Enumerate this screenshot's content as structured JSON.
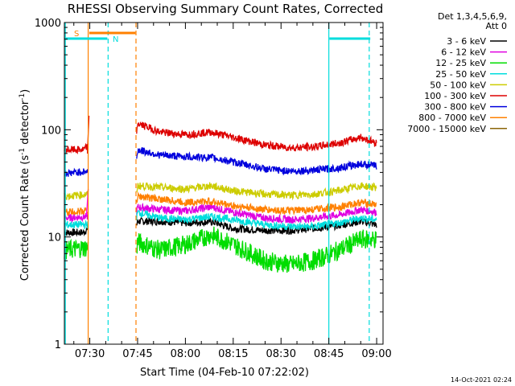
{
  "chart_data": {
    "type": "line",
    "title": "RHESSI Observing Summary Count Rates, Corrected",
    "xlabel": "Start Time (04-Feb-10 07:22:02)",
    "ylabel_main": "Corrected Count Rate (s",
    "ylabel_sup1": "-1",
    "ylabel_mid": " detector",
    "ylabel_sup2": "-1",
    "ylabel_end": ")",
    "y_scale": "log",
    "ylim": [
      1,
      1000
    ],
    "xlim": [
      "07:22:02",
      "09:02:00"
    ],
    "x_ticks": [
      "07:30",
      "07:45",
      "08:00",
      "08:15",
      "08:30",
      "08:45",
      "09:00"
    ],
    "y_ticks": [
      "1",
      "10",
      "100",
      "1000"
    ],
    "legend_header": [
      "Det 1,3,4,5,6,9,",
      "Att 0"
    ],
    "series": [
      {
        "name": "3 - 6 keV",
        "color": "#000000",
        "points": [
          [
            "07:22:02",
            11
          ],
          [
            "07:28:00",
            11
          ],
          [
            "07:29:30",
            12
          ],
          [
            "07:44:30",
            12
          ],
          [
            "07:45:00",
            14
          ],
          [
            "07:52:00",
            14
          ],
          [
            "08:00:00",
            13.5
          ],
          [
            "08:08:00",
            14
          ],
          [
            "08:15:00",
            12
          ],
          [
            "08:25:00",
            11.5
          ],
          [
            "08:33:00",
            11.5
          ],
          [
            "08:40:00",
            12
          ],
          [
            "08:48:00",
            12.8
          ],
          [
            "08:55:00",
            14
          ],
          [
            "09:00:00",
            13
          ]
        ]
      },
      {
        "name": "6 - 12 keV",
        "color": "#e000e0",
        "points": [
          [
            "07:22:02",
            15
          ],
          [
            "07:29:30",
            15.5
          ],
          [
            "07:44:30",
            16
          ],
          [
            "07:45:00",
            19
          ],
          [
            "07:52:00",
            18
          ],
          [
            "08:00:00",
            17.5
          ],
          [
            "08:08:00",
            19
          ],
          [
            "08:15:00",
            17
          ],
          [
            "08:25:00",
            15
          ],
          [
            "08:33:00",
            14.5
          ],
          [
            "08:40:00",
            15
          ],
          [
            "08:48:00",
            16
          ],
          [
            "08:55:00",
            18
          ],
          [
            "09:00:00",
            17
          ]
        ]
      },
      {
        "name": "12 - 25 keV",
        "color": "#00dd00",
        "points": [
          [
            "07:22:02",
            7.5
          ],
          [
            "07:29:30",
            8
          ],
          [
            "07:44:30",
            7
          ],
          [
            "07:45:00",
            9
          ],
          [
            "07:52:00",
            7.5
          ],
          [
            "08:00:00",
            8.5
          ],
          [
            "08:08:00",
            10.5
          ],
          [
            "08:15:00",
            8.5
          ],
          [
            "08:25:00",
            6
          ],
          [
            "08:33:00",
            5.5
          ],
          [
            "08:40:00",
            6
          ],
          [
            "08:45:00",
            6.8
          ],
          [
            "08:55:00",
            9.5
          ],
          [
            "09:00:00",
            9.5
          ]
        ]
      },
      {
        "name": "25 - 50 keV",
        "color": "#00dddd",
        "points": [
          [
            "07:22:02",
            13
          ],
          [
            "07:29:30",
            13
          ],
          [
            "07:44:30",
            14
          ],
          [
            "07:45:00",
            17
          ],
          [
            "07:52:00",
            15
          ],
          [
            "08:00:00",
            14.5
          ],
          [
            "08:08:00",
            15.5
          ],
          [
            "08:15:00",
            14.5
          ],
          [
            "08:25:00",
            13
          ],
          [
            "08:33:00",
            12.5
          ],
          [
            "08:40:00",
            12.5
          ],
          [
            "08:48:00",
            13.5
          ],
          [
            "08:55:00",
            15
          ],
          [
            "09:00:00",
            14.5
          ]
        ]
      },
      {
        "name": "50 - 100 keV",
        "color": "#cccc00",
        "points": [
          [
            "07:22:02",
            24
          ],
          [
            "07:29:30",
            25
          ],
          [
            "07:44:30",
            25
          ],
          [
            "07:45:00",
            30
          ],
          [
            "07:52:00",
            29
          ],
          [
            "08:00:00",
            28
          ],
          [
            "08:08:00",
            30
          ],
          [
            "08:15:00",
            27
          ],
          [
            "08:25:00",
            25
          ],
          [
            "08:33:00",
            24.5
          ],
          [
            "08:40:00",
            25
          ],
          [
            "08:48:00",
            27
          ],
          [
            "08:55:00",
            30
          ],
          [
            "09:00:00",
            29
          ]
        ]
      },
      {
        "name": "100 - 300 keV",
        "color": "#dd0000",
        "points": [
          [
            "07:22:02",
            65
          ],
          [
            "07:28:00",
            65
          ],
          [
            "07:29:30",
            70
          ],
          [
            "07:44:30",
            72
          ],
          [
            "07:45:00",
            115
          ],
          [
            "07:52:00",
            95
          ],
          [
            "08:00:00",
            90
          ],
          [
            "08:08:00",
            95
          ],
          [
            "08:15:00",
            85
          ],
          [
            "08:25:00",
            72
          ],
          [
            "08:33:00",
            68
          ],
          [
            "08:40:00",
            69
          ],
          [
            "08:48:00",
            75
          ],
          [
            "08:55:00",
            85
          ],
          [
            "09:00:00",
            75
          ]
        ]
      },
      {
        "name": "300 - 800 keV",
        "color": "#0000dd",
        "points": [
          [
            "07:22:02",
            39
          ],
          [
            "07:29:30",
            41
          ],
          [
            "07:44:30",
            43
          ],
          [
            "07:45:00",
            65
          ],
          [
            "07:52:00",
            58
          ],
          [
            "08:00:00",
            56
          ],
          [
            "08:08:00",
            55
          ],
          [
            "08:15:00",
            50
          ],
          [
            "08:25:00",
            43
          ],
          [
            "08:33:00",
            41
          ],
          [
            "08:40:00",
            42
          ],
          [
            "08:48:00",
            44
          ],
          [
            "08:55:00",
            48
          ],
          [
            "09:00:00",
            46
          ]
        ]
      },
      {
        "name": "800 - 7000 keV",
        "color": "#ff8000",
        "points": [
          [
            "07:22:02",
            17
          ],
          [
            "07:29:30",
            17.5
          ],
          [
            "07:44:30",
            18
          ],
          [
            "07:45:00",
            24
          ],
          [
            "07:52:00",
            22.5
          ],
          [
            "08:00:00",
            21
          ],
          [
            "08:08:00",
            21.5
          ],
          [
            "08:15:00",
            19.5
          ],
          [
            "08:25:00",
            18
          ],
          [
            "08:33:00",
            17.5
          ],
          [
            "08:40:00",
            18
          ],
          [
            "08:48:00",
            19
          ],
          [
            "08:55:00",
            21
          ],
          [
            "09:00:00",
            20
          ]
        ]
      },
      {
        "name": "7000 - 15000 keV",
        "color": "#8b6508",
        "points": []
      }
    ],
    "annotations": [
      {
        "label": "S",
        "color": "#ff8000"
      },
      {
        "label": "N",
        "color": "#00dddd"
      }
    ],
    "timestamp": "14-Oct-2021 02:24"
  }
}
